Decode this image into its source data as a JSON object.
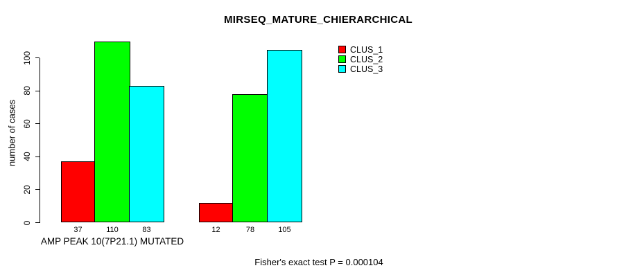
{
  "chart_data": {
    "type": "bar",
    "title": "MIRSEQ_MATURE_CHIERARCHICAL",
    "ylabel": "number of cases",
    "xlabel": "",
    "categories": [
      "AMP PEAK 10(7P21.1) MUTATED",
      ""
    ],
    "series": [
      {
        "name": "CLUS_1",
        "color": "#ff0000",
        "values": [
          37,
          12
        ]
      },
      {
        "name": "CLUS_2",
        "color": "#00ff00",
        "values": [
          110,
          78
        ]
      },
      {
        "name": "CLUS_3",
        "color": "#00ffff",
        "values": [
          83,
          105
        ]
      }
    ],
    "value_labels_shown": true,
    "yticks": [
      0,
      20,
      40,
      60,
      80,
      100
    ],
    "ylim": [
      0,
      110
    ],
    "grid": false,
    "legend_position": "top-right",
    "annotation": "Fisher's exact test P = 0.000104",
    "colors": {
      "background": "#ffffff",
      "axis": "#000000",
      "text": "#000000",
      "bar_border": "#000000"
    }
  }
}
